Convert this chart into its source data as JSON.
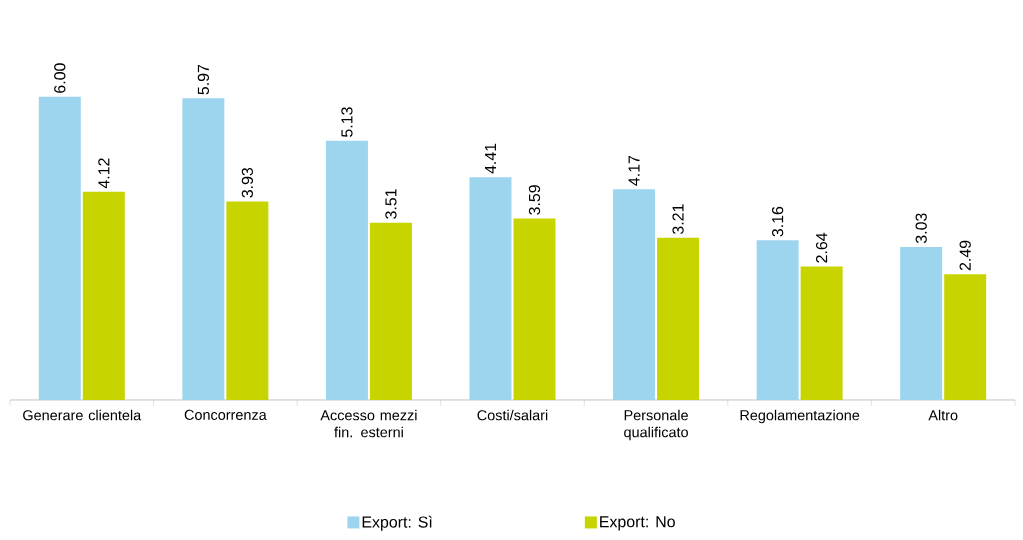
{
  "chart_data": {
    "type": "bar",
    "categories": [
      "Generare clientela",
      "Concorrenza",
      "Accesso mezzi fin. esterni",
      "Costi/salari",
      "Personale qualificato",
      "Regolamentazione",
      "Altro"
    ],
    "series": [
      {
        "name": "Export: Sì",
        "color": "#9dd5ef",
        "values": [
          6.0,
          5.97,
          5.13,
          4.41,
          4.17,
          3.16,
          3.03
        ],
        "value_labels": [
          "6.00",
          "5.97",
          "5.13",
          "4.41",
          "4.17",
          "3.16",
          "3.03"
        ]
      },
      {
        "name": "Export: No",
        "color": "#c8d400",
        "values": [
          4.12,
          3.93,
          3.51,
          3.59,
          3.21,
          2.64,
          2.49
        ],
        "value_labels": [
          "4.12",
          "3.93",
          "3.51",
          "3.59",
          "3.21",
          "2.64",
          "2.49"
        ]
      }
    ],
    "legend": "bottom"
  }
}
